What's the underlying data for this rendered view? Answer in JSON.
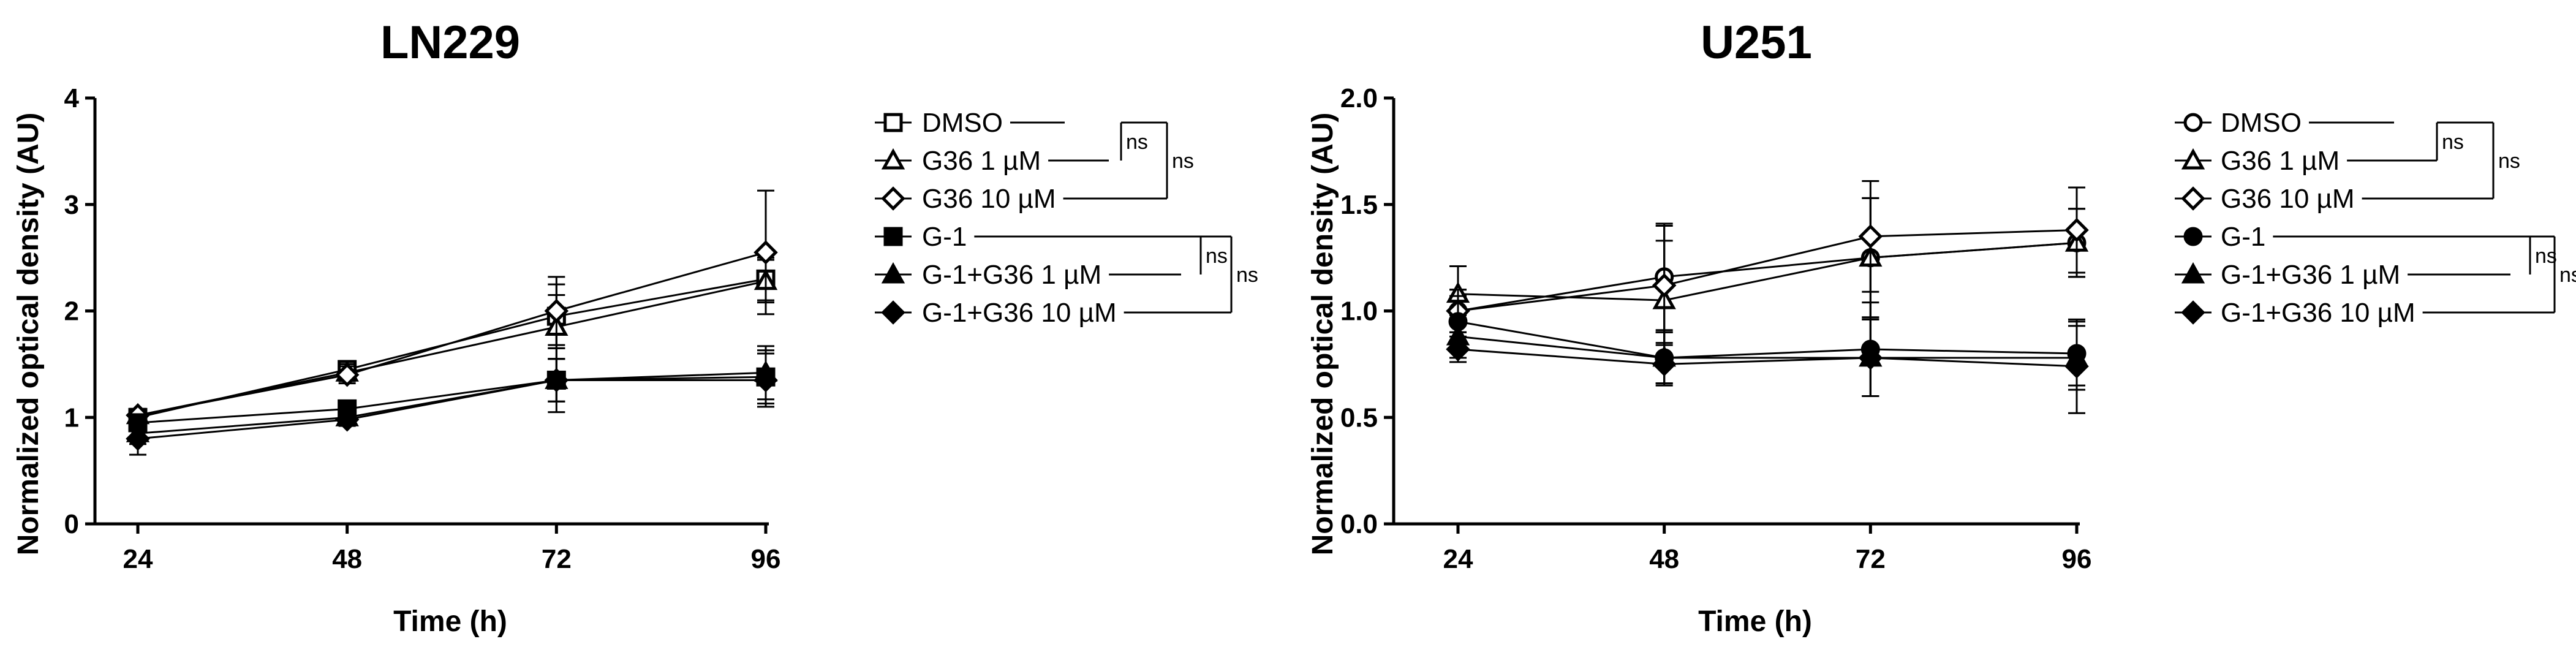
{
  "panels": [
    {
      "title": "LN229",
      "chart_data": {
        "type": "line",
        "title": "LN229",
        "xlabel": "Time (h)",
        "ylabel": "Normalized optical density (AU)",
        "x": [
          24,
          48,
          72,
          96
        ],
        "xticks": [
          "24",
          "48",
          "72",
          "96"
        ],
        "ylim": [
          0,
          4
        ],
        "yticks": [
          "0",
          "1",
          "2",
          "3",
          "4"
        ],
        "grid": false,
        "legend": "right",
        "series": [
          {
            "name": "DMSO",
            "marker": "square-open",
            "values": [
              1.0,
              1.45,
              1.95,
              2.3
            ],
            "errors": [
              0.05,
              0.08,
              0.3,
              0.2
            ]
          },
          {
            "name": "G36 1 µM",
            "marker": "triangle-open",
            "values": [
              1.02,
              1.42,
              1.85,
              2.28
            ],
            "errors": [
              0.06,
              0.08,
              0.3,
              0.2
            ]
          },
          {
            "name": "G36 10 µM",
            "marker": "diamond-open",
            "values": [
              1.02,
              1.4,
              2.0,
              2.55
            ],
            "errors": [
              0.06,
              0.08,
              0.32,
              0.58
            ]
          },
          {
            "name": "G-1",
            "marker": "square-filled",
            "values": [
              0.95,
              1.08,
              1.35,
              1.38
            ],
            "errors": [
              0.05,
              0.05,
              0.2,
              0.25
            ]
          },
          {
            "name": "G-1+G36 1 µM",
            "marker": "triangle-filled",
            "values": [
              0.85,
              1.0,
              1.35,
              1.42
            ],
            "errors": [
              0.1,
              0.05,
              0.2,
              0.25
            ]
          },
          {
            "name": "G-1+G36 10 µM",
            "marker": "diamond-filled",
            "values": [
              0.8,
              0.98,
              1.35,
              1.35
            ],
            "errors": [
              0.15,
              0.06,
              0.3,
              0.25
            ]
          }
        ]
      },
      "legend": {
        "items": [
          "DMSO",
          "G36 1 µM",
          "G36 10 µM",
          "G-1",
          "G-1+G36 1 µM",
          "G-1+G36 10 µM"
        ],
        "brackets": [
          "ns",
          "ns",
          "ns",
          "ns"
        ]
      }
    },
    {
      "title": "U251",
      "chart_data": {
        "type": "line",
        "title": "U251",
        "xlabel": "Time (h)",
        "ylabel": "Normalized optical density (AU)",
        "x": [
          24,
          48,
          72,
          96
        ],
        "xticks": [
          "24",
          "48",
          "72",
          "96"
        ],
        "ylim": [
          0,
          2
        ],
        "yticks": [
          "0.0",
          "0.5",
          "1.0",
          "1.5",
          "2.0"
        ],
        "grid": false,
        "legend": "right",
        "series": [
          {
            "name": "DMSO",
            "marker": "circle-open",
            "values": [
              1.0,
              1.16,
              1.25,
              1.32
            ],
            "errors": [
              0.1,
              0.25,
              0.28,
              0.16
            ]
          },
          {
            "name": "G36 1 µM",
            "marker": "triangle-open",
            "values": [
              1.08,
              1.05,
              1.25,
              1.32
            ],
            "errors": [
              0.13,
              0.28,
              0.28,
              0.16
            ]
          },
          {
            "name": "G36 10 µM",
            "marker": "diamond-open",
            "values": [
              1.0,
              1.12,
              1.35,
              1.38
            ],
            "errors": [
              0.1,
              0.28,
              0.26,
              0.2
            ]
          },
          {
            "name": "G-1",
            "marker": "circle-filled",
            "values": [
              0.95,
              0.78,
              0.82,
              0.8
            ],
            "errors": [
              0.12,
              0.12,
              0.22,
              0.15
            ]
          },
          {
            "name": "G-1+G36 1 µM",
            "marker": "triangle-filled",
            "values": [
              0.88,
              0.78,
              0.78,
              0.78
            ],
            "errors": [
              0.1,
              0.12,
              0.18,
              0.15
            ]
          },
          {
            "name": "G-1+G36 10 µM",
            "marker": "diamond-filled",
            "values": [
              0.82,
              0.75,
              0.78,
              0.74
            ],
            "errors": [
              0.06,
              0.1,
              0.18,
              0.22
            ]
          }
        ]
      },
      "legend": {
        "items": [
          "DMSO",
          "G36 1 µM",
          "G36 10 µM",
          "G-1",
          "G-1+G36 1 µM",
          "G-1+G36 10 µM"
        ],
        "brackets": [
          "ns",
          "ns",
          "ns",
          "ns"
        ]
      }
    }
  ]
}
